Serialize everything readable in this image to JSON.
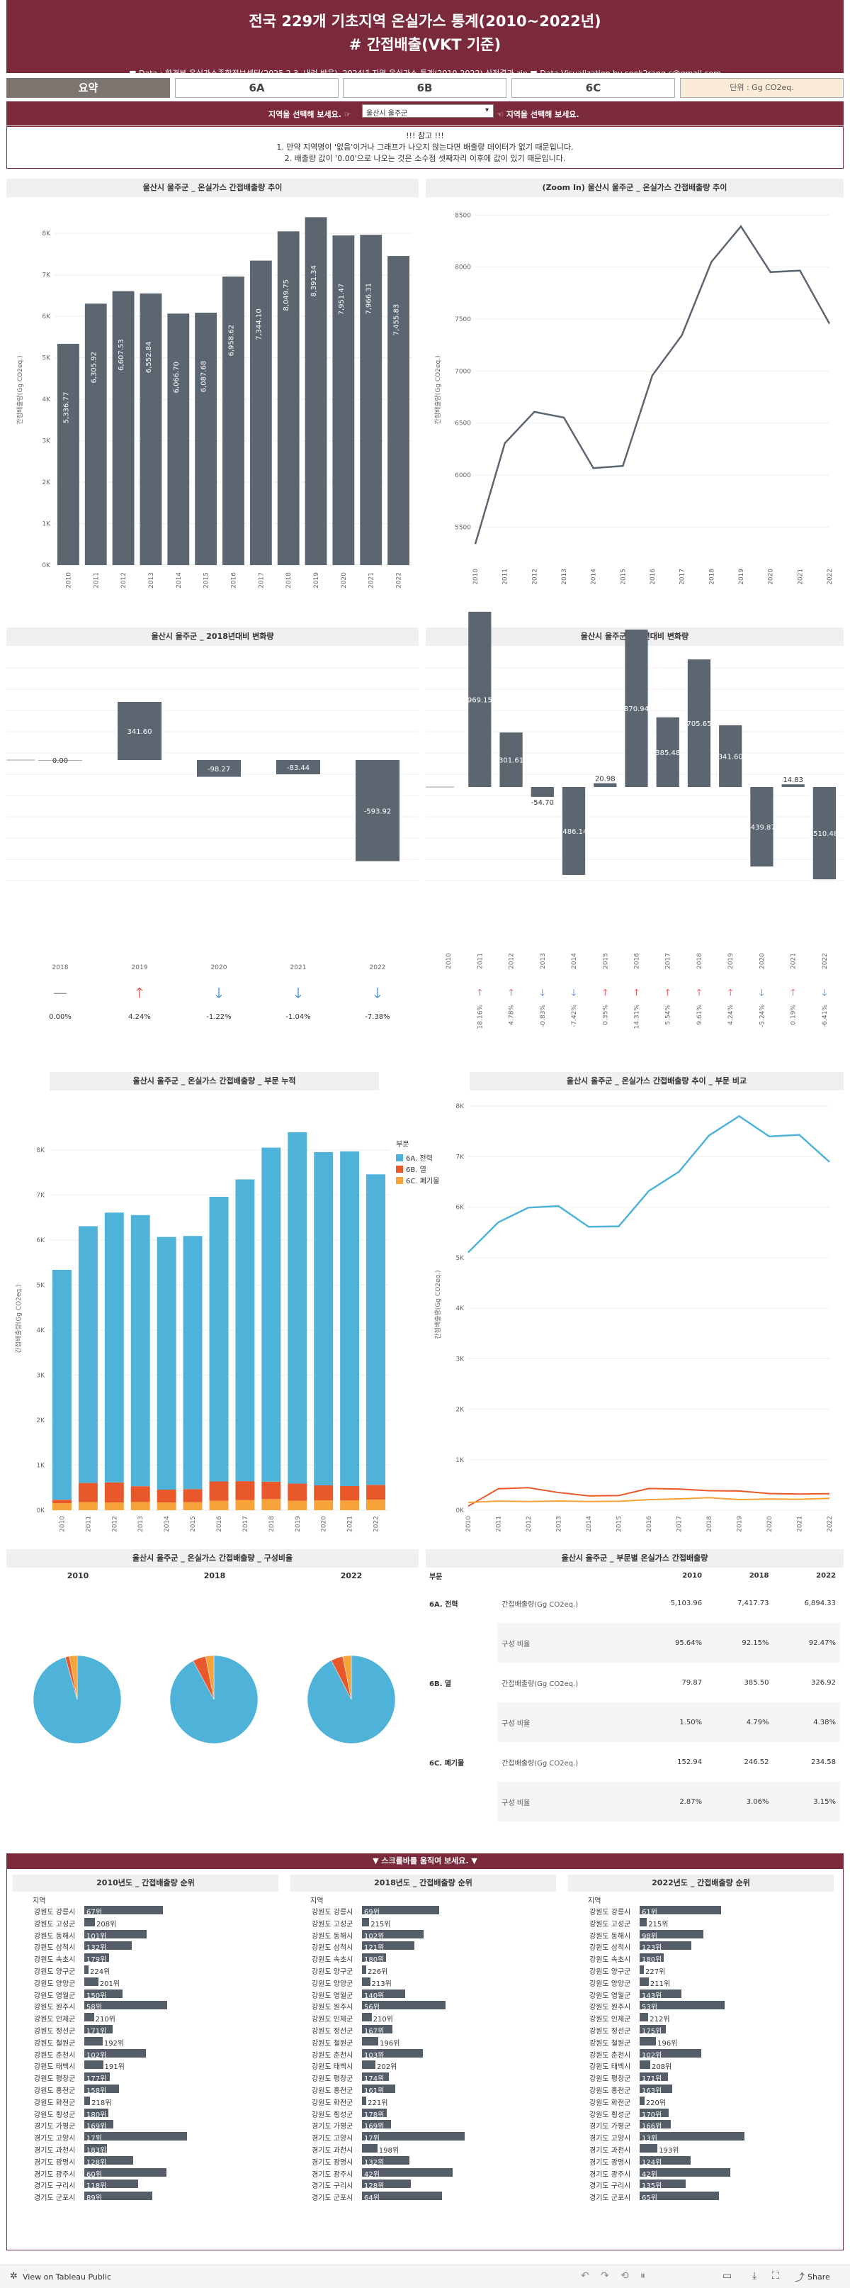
{
  "header": {
    "title1": "전국 229개 기초지역 온실가스 통계(2010~2022년)",
    "title2": "# 간접배출(VKT 기준)",
    "source": "■ Data : 환경부 온실가스종합정보센터(2025.2.3. 내려 받음), 2024년 지역 온실가스 통계(2010-2022) 산정결과.zip    ■ Data Visualization by sook2rang.c@gmail.com"
  },
  "tabs": [
    "요약",
    "6A",
    "6B",
    "6C",
    "단위 : Gg CO2eq."
  ],
  "select": {
    "prompt": "지역을 선택해 보세요. ☞",
    "value": "울산시 울주군",
    "prompt2": "☜ 지역을 선택해 보세요."
  },
  "notes": [
    "!!! 참고 !!!",
    "1. 만약 지역명이 '없음'이거나 그래프가 나오지 않는다면 배출량 데이터가 없기 때문입니다.",
    "2. 배출량 값이 '0.00'으로 나오는 것은 소수점 셋째자리 이후에 값이 있기 때문입니다."
  ],
  "titles": {
    "c1": "울산시 울주군 _ 온실가스 간접배출량 추이",
    "c2": "(Zoom In) 울산시 울주군 _ 온실가스 간접배출량 추이",
    "c3": "울산시 울주군 _ 2018년대비 변화량",
    "c4": "울산시 울주군 _ 전년대비 변화량",
    "c5": "울산시 울주군 _ 온실가스 간접배출량 _ 부문 누적",
    "c6": "울산시 울주군 _ 온실가스 간접배출량 추이 _ 부문 비교",
    "c7": "울산시 울주군 _ 온실가스 간접배출량 _ 구성비율",
    "c8": "울산시 울주군 _ 부문별 온실가스 간접배출량"
  },
  "ylabel": "간접배출량(Gg CO2eq.)",
  "legend": {
    "title": "부문",
    "items": [
      "6A. 전력",
      "6B. 열",
      "6C. 폐기물"
    ]
  },
  "chart_data": [
    {
      "type": "bar",
      "title": "울산시 울주군 _ 온실가스 간접배출량 추이",
      "categories": [
        "2010",
        "2011",
        "2012",
        "2013",
        "2014",
        "2015",
        "2016",
        "2017",
        "2018",
        "2019",
        "2020",
        "2021",
        "2022"
      ],
      "values": [
        5336.77,
        6305.92,
        6607.53,
        6552.84,
        6066.7,
        6087.68,
        6958.62,
        7344.1,
        8049.75,
        8391.34,
        7951.47,
        7966.31,
        7455.83
      ],
      "value_labels": [
        "5,336.77",
        "6,305.92",
        "6,607.53",
        "6,552.84",
        "6,066.70",
        "6,087.68",
        "6,958.62",
        "7,344.10",
        "8,049.75",
        "8,391.34",
        "7,951.47",
        "7,966.31",
        "7,455.83"
      ],
      "ylim": [
        0,
        8500
      ],
      "ticks": [
        "0K",
        "1K",
        "2K",
        "3K",
        "4K",
        "5K",
        "6K",
        "7K",
        "8K"
      ]
    },
    {
      "type": "line",
      "title": "(Zoom In) 울산시 울주군 _ 온실가스 간접배출량 추이",
      "categories": [
        "2010",
        "2011",
        "2012",
        "2013",
        "2014",
        "2015",
        "2016",
        "2017",
        "2018",
        "2019",
        "2020",
        "2021",
        "2022"
      ],
      "values": [
        5336.77,
        6305.92,
        6607.53,
        6552.84,
        6066.7,
        6087.68,
        6958.62,
        7344.1,
        8049.75,
        8391.34,
        7951.47,
        7966.31,
        7455.83
      ],
      "ylim": [
        5250,
        8550
      ],
      "ticks": [
        "5500",
        "6000",
        "6500",
        "7000",
        "7500",
        "8000",
        "8500"
      ]
    },
    {
      "type": "bar",
      "title": "울산시 울주군 _ 2018년대비 변화량",
      "categories": [
        "2018",
        "2019",
        "2020",
        "2021",
        "2022"
      ],
      "values": [
        0.0,
        341.6,
        -98.27,
        -83.44,
        -593.92
      ],
      "value_labels": [
        "0.00",
        "341.60",
        "-98.27",
        "-83.44",
        "-593.92"
      ],
      "pct": [
        "0.00%",
        "4.24%",
        "-1.22%",
        "-1.04%",
        "-7.38%"
      ],
      "arrows": [
        "—",
        "🡑",
        "🡓",
        "🡓",
        "🡓"
      ]
    },
    {
      "type": "bar",
      "title": "울산시 울주군 _ 전년대비 변화량",
      "categories": [
        "2010",
        "2011",
        "2012",
        "2013",
        "2014",
        "2015",
        "2016",
        "2017",
        "2018",
        "2019",
        "2020",
        "2021",
        "2022"
      ],
      "values": [
        0,
        969.15,
        301.61,
        -54.7,
        -486.14,
        20.98,
        870.94,
        385.48,
        705.65,
        341.6,
        -439.87,
        14.83,
        -510.48
      ],
      "value_labels": [
        "",
        "969.15",
        "301.61",
        "-54.70",
        "-486.14",
        "20.98",
        "870.94",
        "385.48",
        "705.65",
        "341.60",
        "-439.87",
        "14.83",
        "-510.48"
      ],
      "pct": [
        "",
        "18.16%",
        "4.78%",
        "-0.83%",
        "-7.42%",
        "0.35%",
        "14.31%",
        "5.54%",
        "9.61%",
        "4.24%",
        "-5.24%",
        "0.19%",
        "-6.41%"
      ],
      "arrows": [
        "",
        "🡑",
        "🡑",
        "🡓",
        "🡓",
        "🡑",
        "🡑",
        "🡑",
        "🡑",
        "🡑",
        "🡓",
        "🡑",
        "🡓"
      ]
    },
    {
      "type": "bar",
      "title": "울산시 울주군 _ 온실가스 간접배출량 _ 부문 누적",
      "categories": [
        "2010",
        "2011",
        "2012",
        "2013",
        "2014",
        "2015",
        "2016",
        "2017",
        "2018",
        "2019",
        "2020",
        "2021",
        "2022"
      ],
      "series": [
        {
          "name": "6A. 전력",
          "values": [
            5103.96,
            5700,
            5990,
            6020,
            5610,
            5620,
            6320,
            6700,
            7417.73,
            7800,
            7400,
            7430,
            6894.33
          ]
        },
        {
          "name": "6B. 열",
          "values": [
            79.87,
            425,
            445,
            350,
            285,
            290,
            430,
            420,
            385.5,
            380,
            330,
            320,
            326.92
          ]
        },
        {
          "name": "6C. 폐기물",
          "values": [
            152.94,
            180,
            172,
            182,
            172,
            178,
            208,
            224,
            246.52,
            211,
            221,
            216,
            234.58
          ]
        }
      ],
      "ylim": [
        0,
        8500
      ],
      "ticks": [
        "0K",
        "1K",
        "2K",
        "3K",
        "4K",
        "5K",
        "6K",
        "7K",
        "8K"
      ]
    },
    {
      "type": "line",
      "title": "울산시 울주군 _ 온실가스 간접배출량 추이 _ 부문 비교",
      "categories": [
        "2010",
        "2011",
        "2012",
        "2013",
        "2014",
        "2015",
        "2016",
        "2017",
        "2018",
        "2019",
        "2020",
        "2021",
        "2022"
      ],
      "series": [
        {
          "name": "6A. 전력",
          "values": [
            5103.96,
            5700,
            5990,
            6020,
            5610,
            5620,
            6320,
            6700,
            7417.73,
            7800,
            7400,
            7430,
            6894.33
          ]
        },
        {
          "name": "6B. 열",
          "values": [
            79.87,
            425,
            445,
            350,
            285,
            290,
            430,
            420,
            385.5,
            380,
            330,
            320,
            326.92
          ]
        },
        {
          "name": "6C. 폐기물",
          "values": [
            152.94,
            180,
            172,
            182,
            172,
            178,
            208,
            224,
            246.52,
            211,
            221,
            216,
            234.58
          ]
        }
      ],
      "ylim": [
        0,
        8000
      ],
      "ticks": [
        "0K",
        "1K",
        "2K",
        "3K",
        "4K",
        "5K",
        "6K",
        "7K",
        "8K"
      ]
    },
    {
      "type": "pie",
      "title": "울산시 울주군 _ 온실가스 간접배출량 _ 구성비율",
      "groups": [
        {
          "label": "2010",
          "values": [
            95.64,
            1.5,
            2.87
          ]
        },
        {
          "label": "2018",
          "values": [
            92.15,
            4.79,
            3.06
          ]
        },
        {
          "label": "2022",
          "values": [
            92.47,
            4.38,
            3.15
          ]
        }
      ],
      "categories": [
        "6A. 전력",
        "6B. 열",
        "6C. 폐기물"
      ]
    },
    {
      "type": "table",
      "title": "울산시 울주군 _ 부문별 온실가스 간접배출량",
      "columns": [
        "부문",
        "",
        "2010",
        "2018",
        "2022"
      ],
      "rows": [
        [
          "6A. 전력",
          "간접배출량(Gg CO2eq.)",
          "5,103.96",
          "7,417.73",
          "6,894.33"
        ],
        [
          "",
          "구성 비율",
          "95.64%",
          "92.15%",
          "92.47%"
        ],
        [
          "6B. 열",
          "간접배출량(Gg CO2eq.)",
          "79.87",
          "385.50",
          "326.92"
        ],
        [
          "",
          "구성 비율",
          "1.50%",
          "4.79%",
          "4.38%"
        ],
        [
          "6C. 폐기물",
          "간접배출량(Gg CO2eq.)",
          "152.94",
          "246.52",
          "234.58"
        ],
        [
          "",
          "구성 비율",
          "2.87%",
          "3.06%",
          "3.15%"
        ]
      ]
    }
  ],
  "colors": {
    "bar": "#5c6670",
    "a": "#4fb3d9",
    "b": "#e8582a",
    "c": "#f8a33a",
    "up": "#e8323a",
    "down": "#2e7fd0",
    "brand": "#7a2a3a"
  },
  "ranking": {
    "bar": "▼ 스크롤바를 움직여 보세요. ▼",
    "col_header": "지역",
    "regions": [
      "강원도 강릉시",
      "강원도 고성군",
      "강원도 동해시",
      "강원도 삼척시",
      "강원도 속초시",
      "강원도 양구군",
      "강원도 양양군",
      "강원도 영월군",
      "강원도 원주시",
      "강원도 인제군",
      "강원도 정선군",
      "강원도 철원군",
      "강원도 춘천시",
      "강원도 태백시",
      "강원도 평창군",
      "강원도 홍천군",
      "강원도 화천군",
      "강원도 횡성군",
      "경기도 가평군",
      "경기도 고양시",
      "경기도 과천시",
      "경기도 광명시",
      "경기도 광주시",
      "경기도 구리시",
      "경기도 군포시"
    ],
    "columns": [
      {
        "title": "2010년도 _ 간접배출량 순위",
        "ranks": [
          "67위",
          "208위",
          "101위",
          "132위",
          "179위",
          "224위",
          "201위",
          "150위",
          "58위",
          "210위",
          "171위",
          "192위",
          "102위",
          "191위",
          "177위",
          "158위",
          "218위",
          "180위",
          "169위",
          "17위",
          "183위",
          "128위",
          "60위",
          "118위",
          "89위"
        ]
      },
      {
        "title": "2018년도 _ 간접배출량 순위",
        "ranks": [
          "69위",
          "215위",
          "102위",
          "121위",
          "180위",
          "226위",
          "213위",
          "140위",
          "56위",
          "210위",
          "167위",
          "196위",
          "103위",
          "202위",
          "174위",
          "161위",
          "221위",
          "178위",
          "169위",
          "17위",
          "198위",
          "132위",
          "42위",
          "128위",
          "64위"
        ]
      },
      {
        "title": "2022년도 _ 간접배출량 순위",
        "ranks": [
          "61위",
          "215위",
          "98위",
          "123위",
          "180위",
          "227위",
          "211위",
          "143위",
          "53위",
          "212위",
          "175위",
          "196위",
          "102위",
          "208위",
          "171위",
          "163위",
          "220위",
          "170위",
          "166위",
          "13위",
          "193위",
          "124위",
          "42위",
          "135위",
          "65위"
        ]
      }
    ]
  },
  "footer": {
    "left": "View on Tableau Public",
    "share": "Share"
  }
}
